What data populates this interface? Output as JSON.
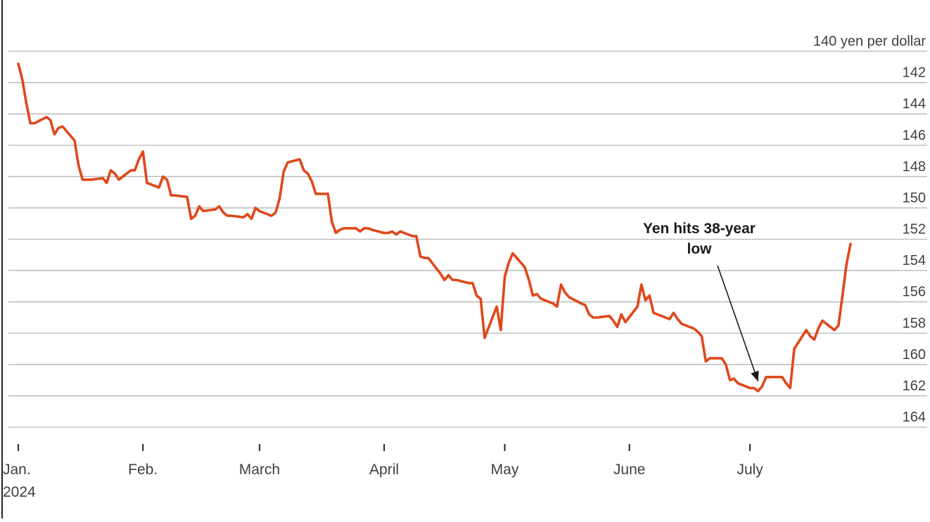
{
  "chart_data": {
    "type": "line",
    "unit_label": "yen per dollar",
    "y_inverted": true,
    "ylim": [
      140,
      164
    ],
    "y_ticks": [
      140,
      142,
      144,
      146,
      148,
      150,
      152,
      154,
      156,
      158,
      160,
      162,
      164
    ],
    "y_tick_labels": [
      "140 yen per dollar",
      "142",
      "144",
      "146",
      "148",
      "150",
      "152",
      "154",
      "156",
      "158",
      "160",
      "162",
      "164"
    ],
    "grid": true,
    "xlim": [
      "2024-01-01",
      "2024-07-26"
    ],
    "x_ticks": [
      {
        "date": "2024-01-01",
        "label": "Jan.",
        "sublabel": "2024"
      },
      {
        "date": "2024-02-01",
        "label": "Feb."
      },
      {
        "date": "2024-03-01",
        "label": "March"
      },
      {
        "date": "2024-04-01",
        "label": "April"
      },
      {
        "date": "2024-05-01",
        "label": "May"
      },
      {
        "date": "2024-06-01",
        "label": "June"
      },
      {
        "date": "2024-07-01",
        "label": "July"
      }
    ],
    "series": [
      {
        "color": "#e0471a",
        "points": [
          [
            "2024-01-01",
            140.8
          ],
          [
            "2024-01-02",
            141.8
          ],
          [
            "2024-01-03",
            143.3
          ],
          [
            "2024-01-04",
            144.6
          ],
          [
            "2024-01-05",
            144.6
          ],
          [
            "2024-01-08",
            144.2
          ],
          [
            "2024-01-09",
            144.4
          ],
          [
            "2024-01-10",
            145.3
          ],
          [
            "2024-01-11",
            144.9
          ],
          [
            "2024-01-12",
            144.8
          ],
          [
            "2024-01-15",
            145.7
          ],
          [
            "2024-01-16",
            147.3
          ],
          [
            "2024-01-17",
            148.2
          ],
          [
            "2024-01-18",
            148.2
          ],
          [
            "2024-01-19",
            148.2
          ],
          [
            "2024-01-22",
            148.1
          ],
          [
            "2024-01-23",
            148.4
          ],
          [
            "2024-01-24",
            147.6
          ],
          [
            "2024-01-25",
            147.8
          ],
          [
            "2024-01-26",
            148.2
          ],
          [
            "2024-01-29",
            147.6
          ],
          [
            "2024-01-30",
            147.6
          ],
          [
            "2024-01-31",
            146.9
          ],
          [
            "2024-02-01",
            146.4
          ],
          [
            "2024-02-02",
            148.4
          ],
          [
            "2024-02-05",
            148.7
          ],
          [
            "2024-02-06",
            148.0
          ],
          [
            "2024-02-07",
            148.2
          ],
          [
            "2024-02-08",
            149.2
          ],
          [
            "2024-02-09",
            149.2
          ],
          [
            "2024-02-12",
            149.3
          ],
          [
            "2024-02-13",
            150.7
          ],
          [
            "2024-02-14",
            150.5
          ],
          [
            "2024-02-15",
            149.9
          ],
          [
            "2024-02-16",
            150.2
          ],
          [
            "2024-02-19",
            150.1
          ],
          [
            "2024-02-20",
            149.9
          ],
          [
            "2024-02-21",
            150.3
          ],
          [
            "2024-02-22",
            150.5
          ],
          [
            "2024-02-23",
            150.5
          ],
          [
            "2024-02-26",
            150.6
          ],
          [
            "2024-02-27",
            150.4
          ],
          [
            "2024-02-28",
            150.7
          ],
          [
            "2024-02-29",
            150.0
          ],
          [
            "2024-03-01",
            150.2
          ],
          [
            "2024-03-04",
            150.5
          ],
          [
            "2024-03-05",
            150.3
          ],
          [
            "2024-03-06",
            149.4
          ],
          [
            "2024-03-07",
            147.7
          ],
          [
            "2024-03-08",
            147.1
          ],
          [
            "2024-03-11",
            146.9
          ],
          [
            "2024-03-12",
            147.6
          ],
          [
            "2024-03-13",
            147.8
          ],
          [
            "2024-03-14",
            148.3
          ],
          [
            "2024-03-15",
            149.1
          ],
          [
            "2024-03-18",
            149.1
          ],
          [
            "2024-03-19",
            150.9
          ],
          [
            "2024-03-20",
            151.6
          ],
          [
            "2024-03-21",
            151.4
          ],
          [
            "2024-03-22",
            151.3
          ],
          [
            "2024-03-25",
            151.3
          ],
          [
            "2024-03-26",
            151.5
          ],
          [
            "2024-03-27",
            151.3
          ],
          [
            "2024-03-28",
            151.3
          ],
          [
            "2024-03-29",
            151.4
          ],
          [
            "2024-04-01",
            151.6
          ],
          [
            "2024-04-02",
            151.6
          ],
          [
            "2024-04-03",
            151.5
          ],
          [
            "2024-04-04",
            151.7
          ],
          [
            "2024-04-05",
            151.5
          ],
          [
            "2024-04-08",
            151.8
          ],
          [
            "2024-04-09",
            151.8
          ],
          [
            "2024-04-10",
            153.1
          ],
          [
            "2024-04-11",
            153.2
          ],
          [
            "2024-04-12",
            153.2
          ],
          [
            "2024-04-15",
            154.2
          ],
          [
            "2024-04-16",
            154.6
          ],
          [
            "2024-04-17",
            154.3
          ],
          [
            "2024-04-18",
            154.6
          ],
          [
            "2024-04-19",
            154.6
          ],
          [
            "2024-04-22",
            154.8
          ],
          [
            "2024-04-23",
            154.8
          ],
          [
            "2024-04-24",
            155.6
          ],
          [
            "2024-04-25",
            155.8
          ],
          [
            "2024-04-26",
            158.3
          ],
          [
            "2024-04-29",
            156.3
          ],
          [
            "2024-04-30",
            157.8
          ],
          [
            "2024-05-01",
            154.4
          ],
          [
            "2024-05-02",
            153.5
          ],
          [
            "2024-05-03",
            152.9
          ],
          [
            "2024-05-06",
            153.8
          ],
          [
            "2024-05-07",
            154.6
          ],
          [
            "2024-05-08",
            155.6
          ],
          [
            "2024-05-09",
            155.5
          ],
          [
            "2024-05-10",
            155.8
          ],
          [
            "2024-05-13",
            156.1
          ],
          [
            "2024-05-14",
            156.3
          ],
          [
            "2024-05-15",
            154.9
          ],
          [
            "2024-05-16",
            155.4
          ],
          [
            "2024-05-17",
            155.7
          ],
          [
            "2024-05-20",
            156.1
          ],
          [
            "2024-05-21",
            156.2
          ],
          [
            "2024-05-22",
            156.8
          ],
          [
            "2024-05-23",
            157.0
          ],
          [
            "2024-05-24",
            157.0
          ],
          [
            "2024-05-27",
            156.9
          ],
          [
            "2024-05-28",
            157.2
          ],
          [
            "2024-05-29",
            157.6
          ],
          [
            "2024-05-30",
            156.8
          ],
          [
            "2024-05-31",
            157.3
          ],
          [
            "2024-06-03",
            156.3
          ],
          [
            "2024-06-04",
            154.9
          ],
          [
            "2024-06-05",
            155.9
          ],
          [
            "2024-06-06",
            155.6
          ],
          [
            "2024-06-07",
            156.7
          ],
          [
            "2024-06-10",
            157.0
          ],
          [
            "2024-06-11",
            157.1
          ],
          [
            "2024-06-12",
            156.7
          ],
          [
            "2024-06-13",
            157.1
          ],
          [
            "2024-06-14",
            157.4
          ],
          [
            "2024-06-17",
            157.7
          ],
          [
            "2024-06-18",
            157.9
          ],
          [
            "2024-06-19",
            158.2
          ],
          [
            "2024-06-20",
            159.8
          ],
          [
            "2024-06-21",
            159.6
          ],
          [
            "2024-06-24",
            159.6
          ],
          [
            "2024-06-25",
            160.0
          ],
          [
            "2024-06-26",
            161.0
          ],
          [
            "2024-06-27",
            160.9
          ],
          [
            "2024-06-28",
            161.2
          ],
          [
            "2024-07-01",
            161.5
          ],
          [
            "2024-07-02",
            161.5
          ],
          [
            "2024-07-03",
            161.7
          ],
          [
            "2024-07-04",
            161.4
          ],
          [
            "2024-07-05",
            160.8
          ],
          [
            "2024-07-08",
            160.8
          ],
          [
            "2024-07-09",
            160.8
          ],
          [
            "2024-07-10",
            161.2
          ],
          [
            "2024-07-11",
            161.5
          ],
          [
            "2024-07-12",
            159.0
          ],
          [
            "2024-07-15",
            157.8
          ],
          [
            "2024-07-16",
            158.2
          ],
          [
            "2024-07-17",
            158.4
          ],
          [
            "2024-07-18",
            157.7
          ],
          [
            "2024-07-19",
            157.2
          ],
          [
            "2024-07-22",
            157.8
          ],
          [
            "2024-07-23",
            157.5
          ],
          [
            "2024-07-24",
            155.6
          ],
          [
            "2024-07-25",
            153.6
          ],
          [
            "2024-07-26",
            152.3
          ]
        ]
      }
    ],
    "annotation": {
      "text_line1": "Yen hits 38-year",
      "text_line2": "low",
      "point_date": "2024-07-03",
      "point_value": 161.7
    }
  }
}
